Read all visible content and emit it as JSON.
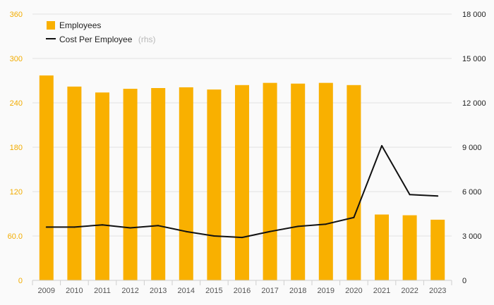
{
  "chart_data": {
    "type": "bar",
    "categories": [
      "2009",
      "2010",
      "2011",
      "2012",
      "2013",
      "2014",
      "2015",
      "2016",
      "2017",
      "2018",
      "2019",
      "2020",
      "2021",
      "2022",
      "2023"
    ],
    "series": [
      {
        "name": "Employees",
        "type": "bar",
        "axis": "left",
        "color": "#f9b000",
        "values": [
          277,
          262,
          254,
          259,
          260,
          261,
          258,
          264,
          267,
          266,
          267,
          264,
          89,
          88,
          82
        ]
      },
      {
        "name": "Cost Per Employee",
        "name_suffix": "(rhs)",
        "type": "line",
        "axis": "right",
        "color": "#111111",
        "values": [
          3600,
          3600,
          3750,
          3550,
          3700,
          3300,
          3000,
          2900,
          3300,
          3650,
          3800,
          4250,
          9100,
          5800,
          5700
        ]
      }
    ],
    "y_left": {
      "ylim": [
        0,
        360
      ],
      "ticks": [
        0,
        60,
        120,
        180,
        240,
        300,
        360
      ],
      "tick_labels": [
        "0",
        "60.0",
        "120",
        "180",
        "240",
        "300",
        "360"
      ],
      "color": "#f2ac00"
    },
    "y_right": {
      "ylim": [
        0,
        18000
      ],
      "ticks": [
        0,
        3000,
        6000,
        9000,
        12000,
        15000,
        18000
      ],
      "tick_labels": [
        "0",
        "3 000",
        "6 000",
        "9 000",
        "12 000",
        "15 000",
        "18 000"
      ],
      "color": "#222222"
    },
    "title": "",
    "xlabel": "",
    "ylabel": "",
    "grid": true,
    "legend_position": "top-left"
  }
}
